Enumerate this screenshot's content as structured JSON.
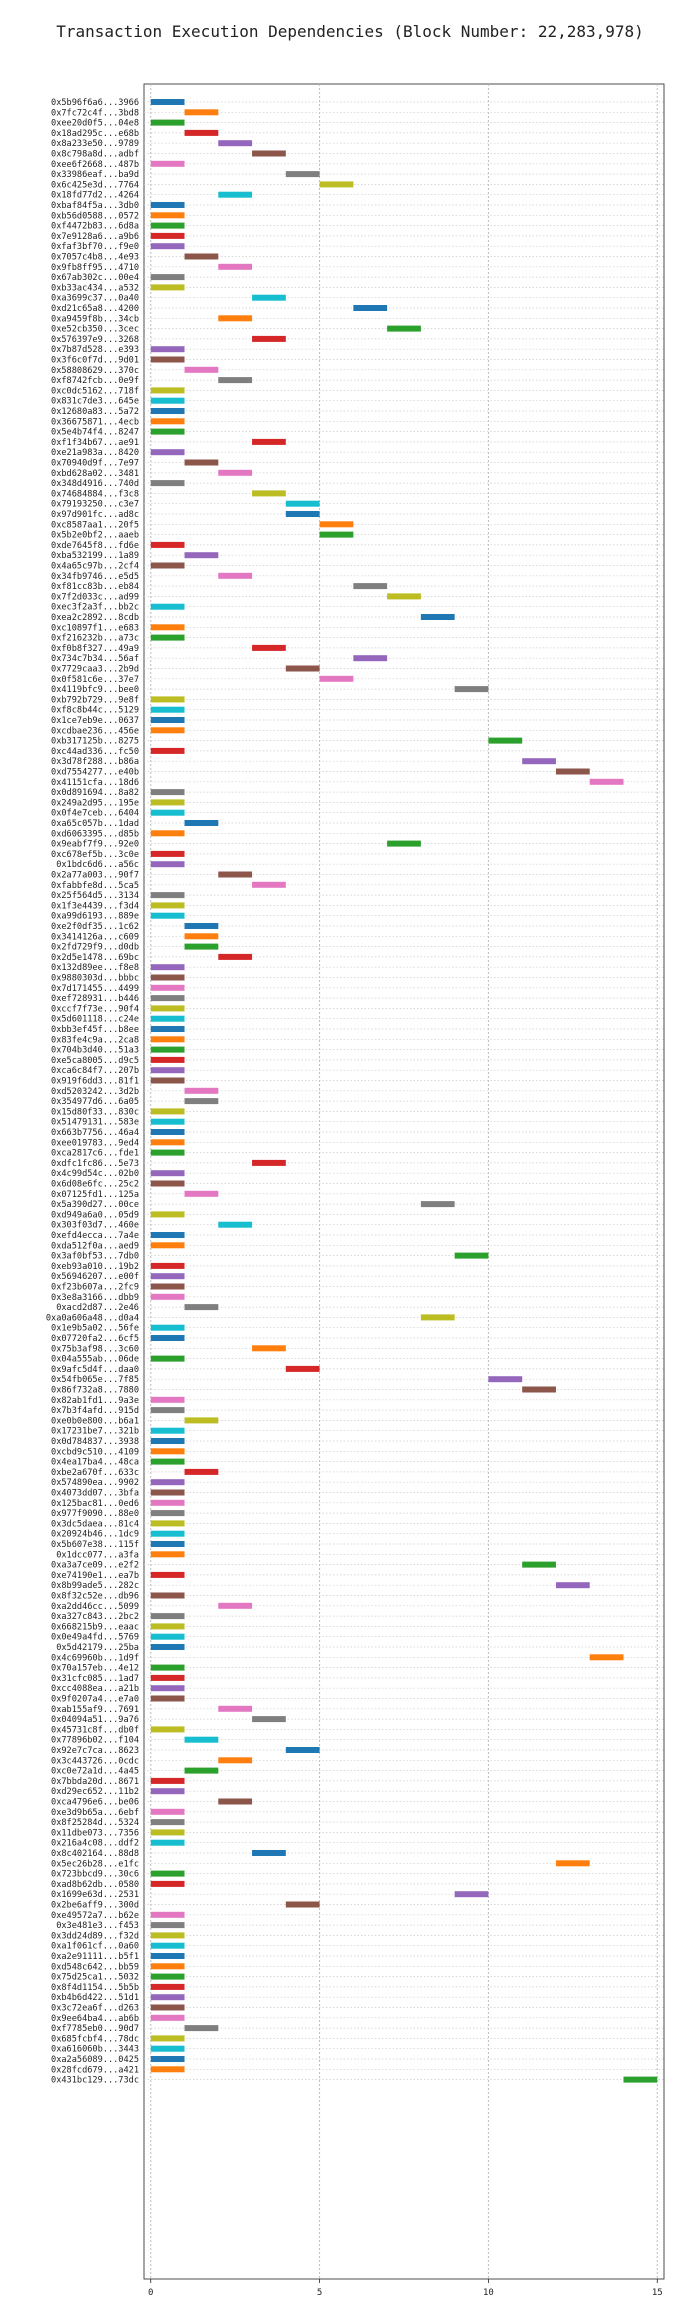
{
  "chart_data": {
    "type": "bar",
    "orientation": "horizontal-gantt",
    "title": "Transaction Execution Dependencies (Block Number: 22,283,978)",
    "xlabel": "",
    "ylabel": "",
    "xlim": [
      -0.2,
      15.2
    ],
    "xticks": [
      0,
      5,
      10,
      15
    ],
    "grid": "x-dotted",
    "palette": [
      "#1f77b4",
      "#ff7f0e",
      "#2ca02c",
      "#d62728",
      "#9467bd",
      "#8c564b",
      "#e377c2",
      "#7f7f7f",
      "#bcbd22",
      "#17becf"
    ],
    "rows": [
      {
        "label": "0x5b96f6a6...3966",
        "start": 0
      },
      {
        "label": "0x7fc72c4f...3bd8",
        "start": 1
      },
      {
        "label": "0xee20d0f5...04e8",
        "start": 0
      },
      {
        "label": "0x18ad295c...e68b",
        "start": 1
      },
      {
        "label": "0x8a233e50...9789",
        "start": 2
      },
      {
        "label": "0x8c798a8d...adbf",
        "start": 3
      },
      {
        "label": "0xee6f2668...487b",
        "start": 0
      },
      {
        "label": "0x33986eaf...ba9d",
        "start": 4
      },
      {
        "label": "0x6c425e3d...7764",
        "start": 5
      },
      {
        "label": "0x18fd77d2...4264",
        "start": 2
      },
      {
        "label": "0xbaf84f5a...3db0",
        "start": 0
      },
      {
        "label": "0xb56d0588...0572",
        "start": 0
      },
      {
        "label": "0xf4472b83...6d8a",
        "start": 0
      },
      {
        "label": "0x7e9128a6...a9b6",
        "start": 0
      },
      {
        "label": "0xfaf3bf70...f9e0",
        "start": 0
      },
      {
        "label": "0x7057c4b8...4e93",
        "start": 1
      },
      {
        "label": "0x9fb8ff95...4710",
        "start": 2
      },
      {
        "label": "0x67ab302c...00e4",
        "start": 0
      },
      {
        "label": "0xb33ac434...a532",
        "start": 0
      },
      {
        "label": "0xa3699c37...0a40",
        "start": 3
      },
      {
        "label": "0xd21c65a8...4200",
        "start": 6
      },
      {
        "label": "0xa9459f8b...34cb",
        "start": 2
      },
      {
        "label": "0xe52cb350...3cec",
        "start": 7
      },
      {
        "label": "0x576397e9...3268",
        "start": 3
      },
      {
        "label": "0x7b87d528...e393",
        "start": 0
      },
      {
        "label": "0x3f6c0f7d...9d01",
        "start": 0
      },
      {
        "label": "0x58808629...370c",
        "start": 1
      },
      {
        "label": "0xf8742fcb...0e9f",
        "start": 2
      },
      {
        "label": "0xc0dc5162...718f",
        "start": 0
      },
      {
        "label": "0x831c7de3...645e",
        "start": 0
      },
      {
        "label": "0x12680a83...5a72",
        "start": 0
      },
      {
        "label": "0x36675871...4ecb",
        "start": 0
      },
      {
        "label": "0x5e4b74f4...8247",
        "start": 0
      },
      {
        "label": "0xf1f34b67...ae91",
        "start": 3
      },
      {
        "label": "0xe21a983a...8420",
        "start": 0
      },
      {
        "label": "0x70940d9f...7e97",
        "start": 1
      },
      {
        "label": "0xbd628a02...3481",
        "start": 2
      },
      {
        "label": "0x348d4916...740d",
        "start": 0
      },
      {
        "label": "0x74684884...f3c8",
        "start": 3
      },
      {
        "label": "0x79193250...c3e7",
        "start": 4
      },
      {
        "label": "0x97d901fc...ad8c",
        "start": 4
      },
      {
        "label": "0xc8587aa1...20f5",
        "start": 5
      },
      {
        "label": "0x5b2e0bf2...aaeb",
        "start": 5
      },
      {
        "label": "0xde7645f8...fd6e",
        "start": 0
      },
      {
        "label": "0xba532199...1a89",
        "start": 1
      },
      {
        "label": "0x4a65c97b...2cf4",
        "start": 0
      },
      {
        "label": "0x34fb9746...e5d5",
        "start": 2
      },
      {
        "label": "0xf81cc83b...eb84",
        "start": 6
      },
      {
        "label": "0x7f2d033c...ad99",
        "start": 7
      },
      {
        "label": "0xec3f2a3f...bb2c",
        "start": 0
      },
      {
        "label": "0xea2c2892...8cdb",
        "start": 8
      },
      {
        "label": "0xc10897f1...e683",
        "start": 0
      },
      {
        "label": "0xf216232b...a73c",
        "start": 0
      },
      {
        "label": "0xf0b8f327...49a9",
        "start": 3
      },
      {
        "label": "0x734c7b34...56af",
        "start": 6
      },
      {
        "label": "0x7729caa3...2b9d",
        "start": 4
      },
      {
        "label": "0x0f581c6e...37e7",
        "start": 5
      },
      {
        "label": "0x4119bfc9...bee0",
        "start": 9
      },
      {
        "label": "0xb792b729...9e8f",
        "start": 0
      },
      {
        "label": "0xf8c8b44c...5129",
        "start": 0
      },
      {
        "label": "0x1ce7eb9e...0637",
        "start": 0
      },
      {
        "label": "0xcdbae236...456e",
        "start": 0
      },
      {
        "label": "0xb317125b...8275",
        "start": 10
      },
      {
        "label": "0xc44ad336...fc50",
        "start": 0
      },
      {
        "label": "0x3d78f288...b86a",
        "start": 11
      },
      {
        "label": "0xd7554277...e40b",
        "start": 12
      },
      {
        "label": "0x41151cfa...18d6",
        "start": 13
      },
      {
        "label": "0x0d891694...8a82",
        "start": 0
      },
      {
        "label": "0x249a2d95...195e",
        "start": 0
      },
      {
        "label": "0x0f4e7ceb...6404",
        "start": 0
      },
      {
        "label": "0xa65c057b...1dad",
        "start": 1
      },
      {
        "label": "0xd6063395...d85b",
        "start": 0
      },
      {
        "label": "0x9eabf7f9...92e0",
        "start": 7
      },
      {
        "label": "0xc678ef5b...3c0e",
        "start": 0
      },
      {
        "label": "0x1bdc6d6...a56c",
        "start": 0
      },
      {
        "label": "0x2a77a003...90f7",
        "start": 2
      },
      {
        "label": "0xfabbfe8d...5ca5",
        "start": 3
      },
      {
        "label": "0x25f564d5...3134",
        "start": 0
      },
      {
        "label": "0x1f3e4439...f3d4",
        "start": 0
      },
      {
        "label": "0xa99d6193...889e",
        "start": 0
      },
      {
        "label": "0xe2f0df35...1c62",
        "start": 1
      },
      {
        "label": "0x3414126a...c609",
        "start": 1
      },
      {
        "label": "0x2fd729f9...d0db",
        "start": 1
      },
      {
        "label": "0x2d5e1478...69bc",
        "start": 2
      },
      {
        "label": "0x132d89ee...f8e8",
        "start": 0
      },
      {
        "label": "0x9880303d...bbbc",
        "start": 0
      },
      {
        "label": "0x7d171455...4499",
        "start": 0
      },
      {
        "label": "0xef728931...b446",
        "start": 0
      },
      {
        "label": "0xccf7f73e...90f4",
        "start": 0
      },
      {
        "label": "0x5d601118...c24e",
        "start": 0
      },
      {
        "label": "0xbb3ef45f...b8ee",
        "start": 0
      },
      {
        "label": "0x83fe4c9a...2ca8",
        "start": 0
      },
      {
        "label": "0x704b3d40...51a3",
        "start": 0
      },
      {
        "label": "0xe5ca8005...d9c5",
        "start": 0
      },
      {
        "label": "0xca6c84f7...207b",
        "start": 0
      },
      {
        "label": "0x919f6dd3...81f1",
        "start": 0
      },
      {
        "label": "0xd5203242...3d2b",
        "start": 1
      },
      {
        "label": "0x354977d6...6a05",
        "start": 1
      },
      {
        "label": "0x15d80f33...830c",
        "start": 0
      },
      {
        "label": "0x51479131...583e",
        "start": 0
      },
      {
        "label": "0x663b7756...46a4",
        "start": 0
      },
      {
        "label": "0xee019783...9ed4",
        "start": 0
      },
      {
        "label": "0xca2817c6...fde1",
        "start": 0
      },
      {
        "label": "0xdfc1fc86...5e73",
        "start": 3
      },
      {
        "label": "0x4c99d54c...02b0",
        "start": 0
      },
      {
        "label": "0x6d08e6fc...25c2",
        "start": 0
      },
      {
        "label": "0x07125fd1...125a",
        "start": 1
      },
      {
        "label": "0x5a390d27...00ce",
        "start": 8
      },
      {
        "label": "0xd949a6a0...05d9",
        "start": 0
      },
      {
        "label": "0x303f03d7...460e",
        "start": 2
      },
      {
        "label": "0xefd4ecca...7a4e",
        "start": 0
      },
      {
        "label": "0xda512f0a...aed9",
        "start": 0
      },
      {
        "label": "0x3af0bf53...7db0",
        "start": 9
      },
      {
        "label": "0xeb93a010...19b2",
        "start": 0
      },
      {
        "label": "0x56946207...e00f",
        "start": 0
      },
      {
        "label": "0xf23b607a...2fc9",
        "start": 0
      },
      {
        "label": "0x3e8a3166...dbb9",
        "start": 0
      },
      {
        "label": "0xacd2d87...2e46",
        "start": 1
      },
      {
        "label": "0xa0a606a48...d0a4",
        "start": 8
      },
      {
        "label": "0x1e9b5a02...56fe",
        "start": 0
      },
      {
        "label": "0x07720fa2...6cf5",
        "start": 0
      },
      {
        "label": "0x75b3af98...3c60",
        "start": 3
      },
      {
        "label": "0x04a555ab...06de",
        "start": 0
      },
      {
        "label": "0x9afc5d4f...daa0",
        "start": 4
      },
      {
        "label": "0x54fb065e...7f85",
        "start": 10
      },
      {
        "label": "0x86f732a8...7880",
        "start": 11
      },
      {
        "label": "0x82ab1fd1...9a3e",
        "start": 0
      },
      {
        "label": "0x7b3f4afd...915d",
        "start": 0
      },
      {
        "label": "0xe0b0e800...b6a1",
        "start": 1
      },
      {
        "label": "0x17231be7...321b",
        "start": 0
      },
      {
        "label": "0x0d784837...3938",
        "start": 0
      },
      {
        "label": "0xcbd9c510...4109",
        "start": 0
      },
      {
        "label": "0x4ea17ba4...48ca",
        "start": 0
      },
      {
        "label": "0xbe2a670f...633c",
        "start": 1
      },
      {
        "label": "0x574890ea...9902",
        "start": 0
      },
      {
        "label": "0x4073dd07...3bfa",
        "start": 0
      },
      {
        "label": "0x125bac81...0ed6",
        "start": 0
      },
      {
        "label": "0x977f9090...88e0",
        "start": 0
      },
      {
        "label": "0x3dc5daea...81c4",
        "start": 0
      },
      {
        "label": "0x20924b46...1dc9",
        "start": 0
      },
      {
        "label": "0x5b607e38...115f",
        "start": 0
      },
      {
        "label": "0x1dcc077...a3fa",
        "start": 0
      },
      {
        "label": "0xa3a7ce09...e2f2",
        "start": 11
      },
      {
        "label": "0xe74190e1...ea7b",
        "start": 0
      },
      {
        "label": "0x8b99ade5...282c",
        "start": 12
      },
      {
        "label": "0x8f32c52e...db96",
        "start": 0
      },
      {
        "label": "0xa2dd46cc...5099",
        "start": 2
      },
      {
        "label": "0xa327c843...2bc2",
        "start": 0
      },
      {
        "label": "0x668215b9...eaac",
        "start": 0
      },
      {
        "label": "0x0e49a4fd...5769",
        "start": 0
      },
      {
        "label": "0x5d42179...25ba",
        "start": 0
      },
      {
        "label": "0x4c69960b...1d9f",
        "start": 13
      },
      {
        "label": "0x70a157eb...4e12",
        "start": 0
      },
      {
        "label": "0x31cfc085...1ad7",
        "start": 0
      },
      {
        "label": "0xcc4088ea...a21b",
        "start": 0
      },
      {
        "label": "0x9f0207a4...e7a0",
        "start": 0
      },
      {
        "label": "0xab155af9...7691",
        "start": 2
      },
      {
        "label": "0x04094a51...9a76",
        "start": 3
      },
      {
        "label": "0x45731c8f...db0f",
        "start": 0
      },
      {
        "label": "0x77896b02...f104",
        "start": 1
      },
      {
        "label": "0x92e7c7ca...8623",
        "start": 4
      },
      {
        "label": "0x3c443726...0cdc",
        "start": 2
      },
      {
        "label": "0xc0e72a1d...4a45",
        "start": 1
      },
      {
        "label": "0x7bbda20d...8671",
        "start": 0
      },
      {
        "label": "0xd29ec652...11b2",
        "start": 0
      },
      {
        "label": "0xca4796e6...be06",
        "start": 2
      },
      {
        "label": "0xe3d9b65a...6ebf",
        "start": 0
      },
      {
        "label": "0x8f25284d...5324",
        "start": 0
      },
      {
        "label": "0x11dbe073...7356",
        "start": 0
      },
      {
        "label": "0x216a4c08...ddf2",
        "start": 0
      },
      {
        "label": "0x8c402164...88d8",
        "start": 3
      },
      {
        "label": "0x5ec26b28...e1fc",
        "start": 12
      },
      {
        "label": "0x723bbcd9...30c6",
        "start": 0
      },
      {
        "label": "0xad8b62db...0580",
        "start": 0
      },
      {
        "label": "0x1699e63d...2531",
        "start": 9
      },
      {
        "label": "0x2be6aff9...300d",
        "start": 4
      },
      {
        "label": "0xe49572a7...b62e",
        "start": 0
      },
      {
        "label": "0x3e481e3...f453",
        "start": 0
      },
      {
        "label": "0x3dd24d89...f32d",
        "start": 0
      },
      {
        "label": "0xa1f061cf...0a60",
        "start": 0
      },
      {
        "label": "0xa2e91111...b5f1",
        "start": 0
      },
      {
        "label": "0xd548c642...bb59",
        "start": 0
      },
      {
        "label": "0x75d25ca1...5032",
        "start": 0
      },
      {
        "label": "0x8f4d1154...5b5b",
        "start": 0
      },
      {
        "label": "0xb4b6d422...51d1",
        "start": 0
      },
      {
        "label": "0x3c72ea6f...d263",
        "start": 0
      },
      {
        "label": "0x9ee64ba4...ab6b",
        "start": 0
      },
      {
        "label": "0xf7785eb0...90d7",
        "start": 1
      },
      {
        "label": "0x685fcbf4...78dc",
        "start": 0
      },
      {
        "label": "0xa616060b...3443",
        "start": 0
      },
      {
        "label": "0xa2a56089...0425",
        "start": 0
      },
      {
        "label": "0x28fcd679...a421",
        "start": 0
      },
      {
        "label": "0x431bc129...73dc",
        "start": 14
      }
    ]
  }
}
